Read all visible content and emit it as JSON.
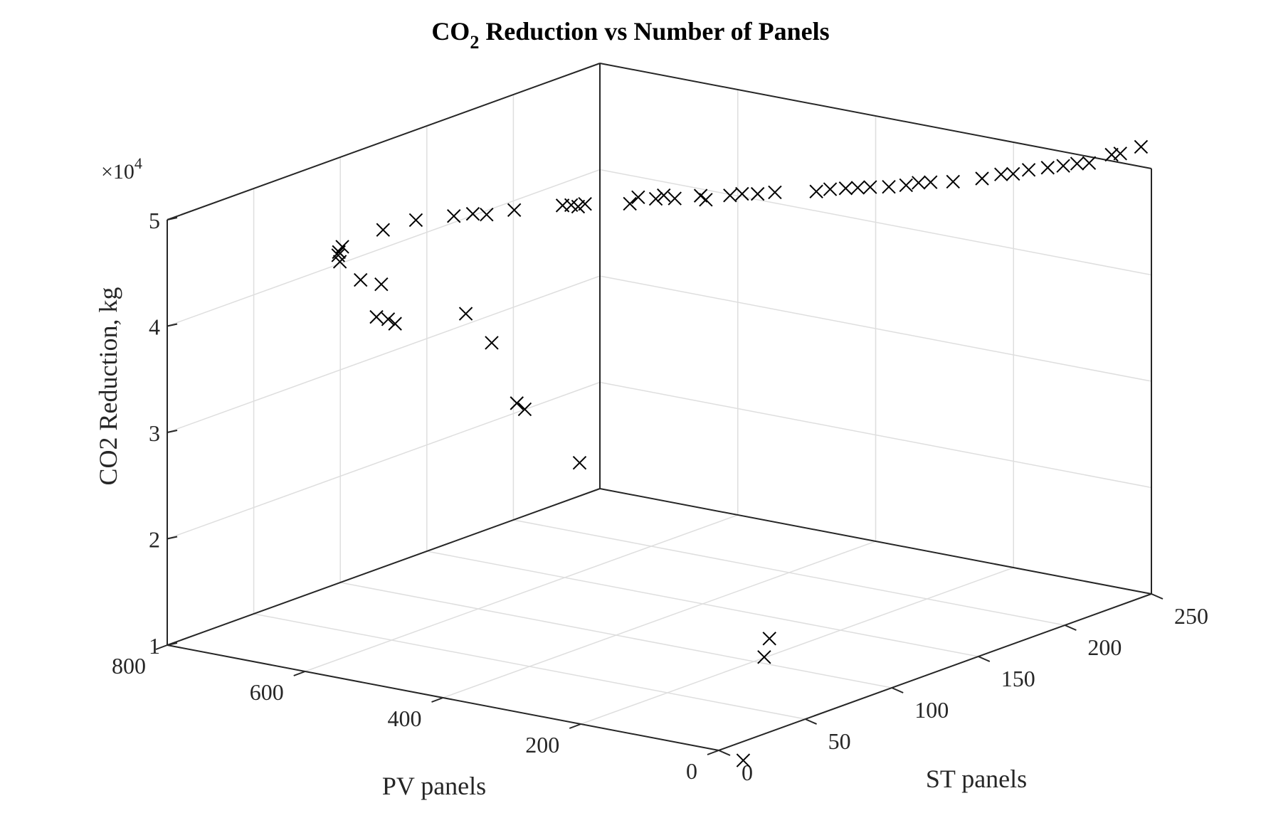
{
  "chart_data": {
    "type": "scatter",
    "title": {
      "prefix": "CO",
      "sub": "2",
      "suffix": " Reduction vs Number of Panels"
    },
    "xlabel": "PV panels",
    "ylabel": "ST panels",
    "zlabel": "CO2 Reduction, kg",
    "z_exponent": {
      "base": "×10",
      "power": "4"
    },
    "xlim": [
      0,
      800
    ],
    "ylim": [
      0,
      250
    ],
    "zlim": [
      1,
      5
    ],
    "x_ticks": [
      0,
      200,
      400,
      600,
      800
    ],
    "y_ticks": [
      0,
      50,
      100,
      150,
      200,
      250
    ],
    "z_ticks": [
      1,
      2,
      3,
      4,
      5
    ],
    "x_tick_labels": [
      "0",
      "200",
      "400",
      "600",
      "800"
    ],
    "y_tick_labels": [
      "0",
      "50",
      "100",
      "150",
      "200",
      "250"
    ],
    "z_tick_labels": [
      "1",
      "2",
      "3",
      "4",
      "5"
    ],
    "grid": true,
    "marker": "x",
    "marker_color": "#000000",
    "series": [
      {
        "points": [
          {
            "x": 90,
            "y": 50,
            "z": 0.5
          },
          {
            "x": 170,
            "y": 97,
            "z": 1.27
          },
          {
            "x": 160,
            "y": 90,
            "z": 1.15
          },
          {
            "x": 365,
            "y": 65,
            "z": 2.87
          },
          {
            "x": 432,
            "y": 60,
            "z": 3.32
          },
          {
            "x": 436,
            "y": 57,
            "z": 3.39
          },
          {
            "x": 490,
            "y": 64,
            "z": 3.85
          },
          {
            "x": 590,
            "y": 48,
            "z": 4.0
          },
          {
            "x": 600,
            "y": 48,
            "z": 4.03
          },
          {
            "x": 620,
            "y": 52,
            "z": 4.31
          },
          {
            "x": 617,
            "y": 48,
            "z": 4.03
          },
          {
            "x": 510,
            "y": 57,
            "z": 4.14
          },
          {
            "x": 640,
            "y": 48,
            "z": 4.35
          },
          {
            "x": 670,
            "y": 47,
            "z": 4.55
          },
          {
            "x": 660,
            "y": 44,
            "z": 4.52
          },
          {
            "x": 669,
            "y": 49,
            "z": 4.62
          },
          {
            "x": 664,
            "y": 45,
            "z": 4.6
          },
          {
            "x": 630,
            "y": 57,
            "z": 4.78
          },
          {
            "x": 605,
            "y": 66,
            "z": 4.85
          },
          {
            "x": 560,
            "y": 70,
            "z": 4.92
          },
          {
            "x": 545,
            "y": 75,
            "z": 4.93
          },
          {
            "x": 530,
            "y": 77,
            "z": 4.93
          },
          {
            "x": 510,
            "y": 85,
            "z": 4.95
          },
          {
            "x": 465,
            "y": 95,
            "z": 4.99
          },
          {
            "x": 455,
            "y": 96,
            "z": 5.0
          },
          {
            "x": 450,
            "y": 98,
            "z": 4.98
          },
          {
            "x": 445,
            "y": 100,
            "z": 5.0
          },
          {
            "x": 400,
            "y": 108,
            "z": 5.01
          },
          {
            "x": 398,
            "y": 112,
            "z": 5.05
          },
          {
            "x": 380,
            "y": 115,
            "z": 5.04
          },
          {
            "x": 376,
            "y": 118,
            "z": 5.06
          },
          {
            "x": 360,
            "y": 118,
            "z": 5.05
          },
          {
            "x": 340,
            "y": 125,
            "z": 5.06
          },
          {
            "x": 330,
            "y": 124,
            "z": 5.04
          },
          {
            "x": 310,
            "y": 130,
            "z": 5.07
          },
          {
            "x": 300,
            "y": 133,
            "z": 5.08
          },
          {
            "x": 285,
            "y": 136,
            "z": 5.08
          },
          {
            "x": 270,
            "y": 140,
            "z": 5.09
          },
          {
            "x": 230,
            "y": 148,
            "z": 5.1
          },
          {
            "x": 220,
            "y": 152,
            "z": 5.11
          },
          {
            "x": 205,
            "y": 155,
            "z": 5.12
          },
          {
            "x": 195,
            "y": 158,
            "z": 5.12
          },
          {
            "x": 182,
            "y": 160,
            "z": 5.13
          },
          {
            "x": 165,
            "y": 164,
            "z": 5.13
          },
          {
            "x": 150,
            "y": 168,
            "z": 5.14
          },
          {
            "x": 142,
            "y": 172,
            "z": 5.15
          },
          {
            "x": 132,
            "y": 175,
            "z": 5.15
          },
          {
            "x": 112,
            "y": 180,
            "z": 5.15
          },
          {
            "x": 90,
            "y": 188,
            "z": 5.16
          },
          {
            "x": 80,
            "y": 195,
            "z": 5.17
          },
          {
            "x": 70,
            "y": 198,
            "z": 5.17
          },
          {
            "x": 60,
            "y": 203,
            "z": 5.19
          },
          {
            "x": 45,
            "y": 208,
            "z": 5.2
          },
          {
            "x": 35,
            "y": 213,
            "z": 5.2
          },
          {
            "x": 25,
            "y": 217,
            "z": 5.21
          },
          {
            "x": 15,
            "y": 220,
            "z": 5.21
          },
          {
            "x": 10,
            "y": 231,
            "z": 5.23
          },
          {
            "x": 5,
            "y": 234,
            "z": 5.23
          },
          {
            "x": 0,
            "y": 244,
            "z": 5.24
          }
        ]
      }
    ]
  }
}
